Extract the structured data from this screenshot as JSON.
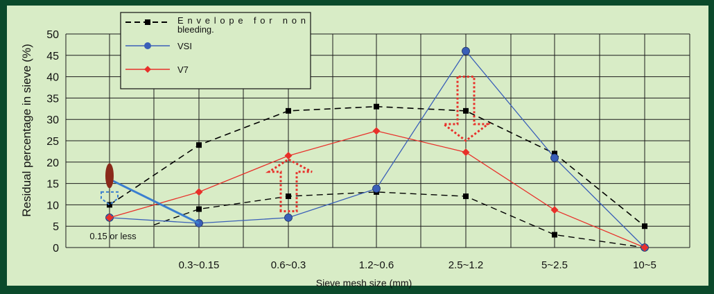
{
  "colors": {
    "frame": "#0b4a2b",
    "panel": "#d8ecc6",
    "grid": "#1a1a1a",
    "envelope": "#000000",
    "vsi": "#3a5fb8",
    "v7": "#e8302a",
    "hint_arrow": "#e8302a",
    "marker_oval": "#8a2a1a",
    "marker_arrow": "#3a7fd0"
  },
  "chart_data": {
    "type": "line",
    "xlabel": "Sieve mesh size (mm)",
    "ylabel": "Residual percentage in sieve (%)",
    "ylim": [
      0,
      50
    ],
    "yticks": [
      0,
      5,
      10,
      15,
      20,
      25,
      30,
      35,
      40,
      45,
      50
    ],
    "grid": true,
    "categories": [
      "0.15 or less",
      "0.3~0.15",
      "0.6~0.3",
      "1.2~0.6",
      "2.5~1.2",
      "5~2.5",
      "10~5"
    ],
    "legend": {
      "placement": "top-left",
      "entries": [
        "Envelope for non bleeding.",
        "VSI",
        "V7"
      ]
    },
    "series": [
      {
        "name": "Envelope for non bleeding.",
        "key": "envelope_upper",
        "style": "dashed",
        "marker": "square",
        "values": [
          10,
          24,
          32,
          33,
          32,
          22,
          5
        ]
      },
      {
        "name": "Envelope for non bleeding.",
        "key": "envelope_lower",
        "style": "dashed",
        "marker": "square",
        "values": [
          null,
          9,
          12,
          13,
          12,
          3,
          0
        ]
      },
      {
        "name": "VSI",
        "key": "vsi",
        "style": "solid",
        "marker": "circle",
        "values": [
          7,
          5.7,
          7,
          13.8,
          46,
          21,
          0
        ]
      },
      {
        "name": "V7",
        "key": "v7",
        "style": "solid",
        "marker": "diamond",
        "values": [
          7,
          13,
          21.5,
          27.3,
          22.3,
          8.8,
          0
        ]
      }
    ],
    "annotations": {
      "vsi_highlight_segment": [
        16,
        5.7
      ],
      "up_arrow_range": [
        8.5,
        20
      ],
      "down_arrow_range": [
        25,
        40
      ]
    }
  }
}
